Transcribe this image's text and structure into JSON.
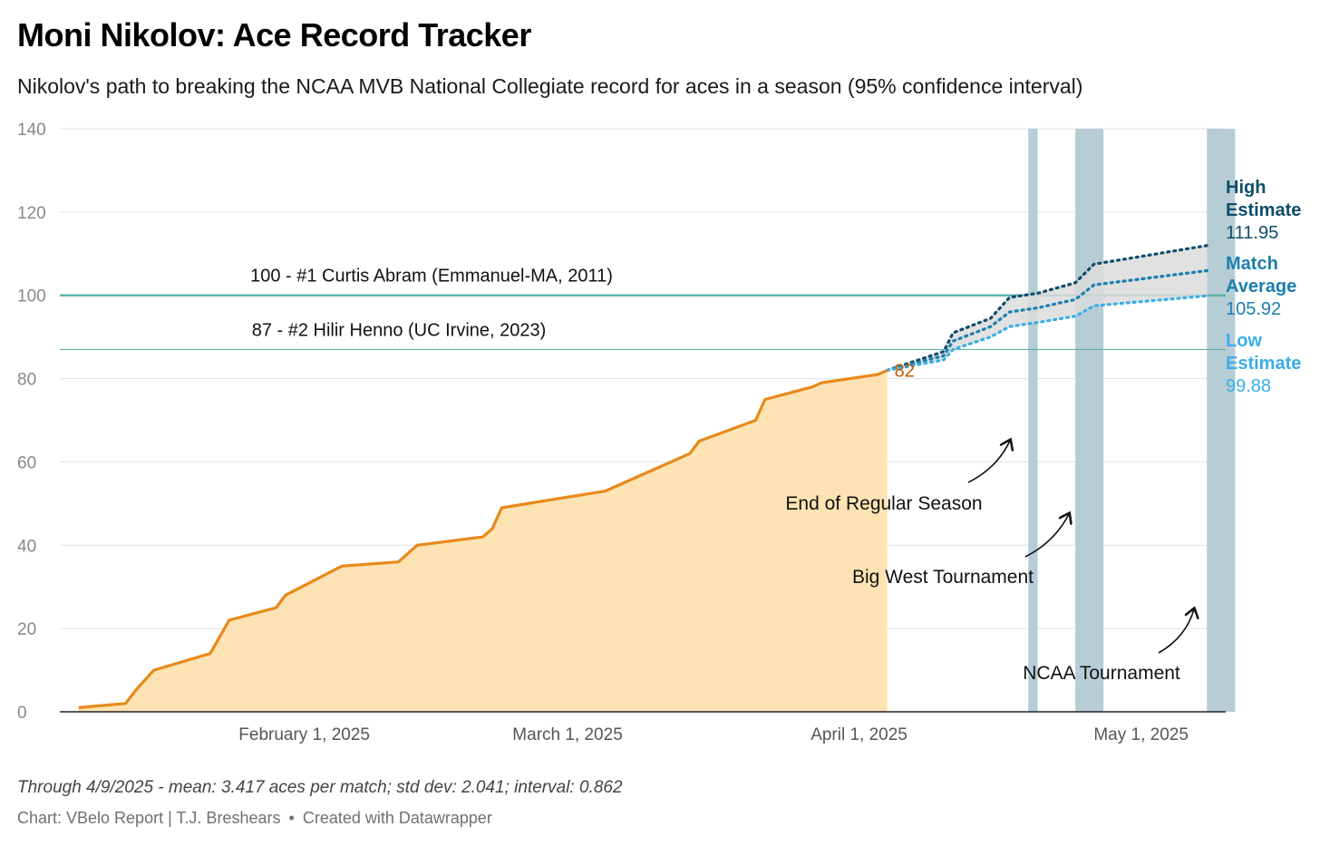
{
  "title": "Moni Nikolov: Ace Record Tracker",
  "subtitle": "Nikolov's path to breaking the NCAA MVB National Collegiate record for aces in a season (95% confidence interval)",
  "note": "Through 4/9/2025 - mean: 3.417 aces per match; std dev: 2.041; interval: 0.862",
  "credit": {
    "source": "Chart: VBelo Report | T.J. Breshears",
    "separator": "•",
    "tool": "Created with Datawrapper"
  },
  "colors": {
    "actual_line": "#e8891c",
    "actual_area": "#fde3b3",
    "actual_label": "#c05a00",
    "high": "#0f4d6a",
    "avg": "#1a7fae",
    "low": "#3aaee6",
    "band": "#dcdcdc",
    "record_line": "#5fb3a8",
    "tournament": "#b7cdd6",
    "grid": "#e0e0e0",
    "axis_text": "#888888"
  },
  "chart_data": {
    "type": "line",
    "x_axis": {
      "type": "date",
      "min": "2025-01-06",
      "max": "2025-05-10",
      "ticks": [
        {
          "date": "2025-02-01",
          "label": "February 1, 2025"
        },
        {
          "date": "2025-03-01",
          "label": "March 1, 2025"
        },
        {
          "date": "2025-04-01",
          "label": "April 1, 2025"
        },
        {
          "date": "2025-05-01",
          "label": "May 1, 2025"
        }
      ]
    },
    "y_axis": {
      "min": 0,
      "max": 140,
      "ticks": [
        0,
        20,
        40,
        60,
        80,
        100,
        120,
        140
      ]
    },
    "grid": true,
    "actual": {
      "end_label": "82",
      "points": [
        [
          "2025-01-08",
          1
        ],
        [
          "2025-01-13",
          2
        ],
        [
          "2025-01-14",
          5
        ],
        [
          "2025-01-16",
          10
        ],
        [
          "2025-01-22",
          14
        ],
        [
          "2025-01-24",
          22
        ],
        [
          "2025-01-29",
          25
        ],
        [
          "2025-01-30",
          28
        ],
        [
          "2025-02-05",
          35
        ],
        [
          "2025-02-11",
          36
        ],
        [
          "2025-02-13",
          40
        ],
        [
          "2025-02-20",
          42
        ],
        [
          "2025-02-21",
          44
        ],
        [
          "2025-02-22",
          49
        ],
        [
          "2025-03-05",
          53
        ],
        [
          "2025-03-14",
          62
        ],
        [
          "2025-03-15",
          65
        ],
        [
          "2025-03-21",
          70
        ],
        [
          "2025-03-22",
          75
        ],
        [
          "2025-03-27",
          78
        ],
        [
          "2025-03-28",
          79
        ],
        [
          "2025-04-03",
          81
        ],
        [
          "2025-04-04",
          82
        ]
      ]
    },
    "projections": [
      {
        "name": "High Estimate",
        "label_lines": [
          "High",
          "Estimate"
        ],
        "value_label": "111.95",
        "points": [
          [
            "2025-04-04",
            82
          ],
          [
            "2025-04-10",
            86.5
          ],
          [
            "2025-04-11",
            91
          ],
          [
            "2025-04-15",
            94.5
          ],
          [
            "2025-04-17",
            99.5
          ],
          [
            "2025-04-20",
            100.5
          ],
          [
            "2025-04-24",
            103
          ],
          [
            "2025-04-26",
            107.5
          ],
          [
            "2025-05-08",
            111.95
          ]
        ]
      },
      {
        "name": "Match Average",
        "label_lines": [
          "Match",
          "Average"
        ],
        "value_label": "105.92",
        "points": [
          [
            "2025-04-04",
            82
          ],
          [
            "2025-04-10",
            85.5
          ],
          [
            "2025-04-11",
            89
          ],
          [
            "2025-04-15",
            92.5
          ],
          [
            "2025-04-17",
            96
          ],
          [
            "2025-04-20",
            97
          ],
          [
            "2025-04-24",
            99
          ],
          [
            "2025-04-26",
            102.5
          ],
          [
            "2025-05-08",
            105.92
          ]
        ]
      },
      {
        "name": "Low Estimate",
        "label_lines": [
          "Low",
          "Estimate"
        ],
        "value_label": "99.88",
        "points": [
          [
            "2025-04-04",
            82
          ],
          [
            "2025-04-10",
            84.5
          ],
          [
            "2025-04-11",
            87
          ],
          [
            "2025-04-15",
            90
          ],
          [
            "2025-04-17",
            92.5
          ],
          [
            "2025-04-20",
            93.5
          ],
          [
            "2025-04-24",
            95
          ],
          [
            "2025-04-26",
            97.5
          ],
          [
            "2025-05-08",
            99.88
          ]
        ]
      }
    ],
    "reference_lines": [
      {
        "value": 100,
        "label": "100 - #1 Curtis Abram (Emmanuel-MA, 2011)"
      },
      {
        "value": 87,
        "label": "87 - #2 Hilir Henno (UC Irvine, 2023)"
      }
    ],
    "ranges": [
      {
        "label": "End of Regular Season",
        "start": "2025-04-19",
        "end": "2025-04-20"
      },
      {
        "label": "Big West Tournament",
        "start": "2025-04-24",
        "end": "2025-04-27"
      },
      {
        "label": "NCAA Tournament",
        "start": "2025-05-08",
        "end": "2025-05-11"
      }
    ]
  }
}
